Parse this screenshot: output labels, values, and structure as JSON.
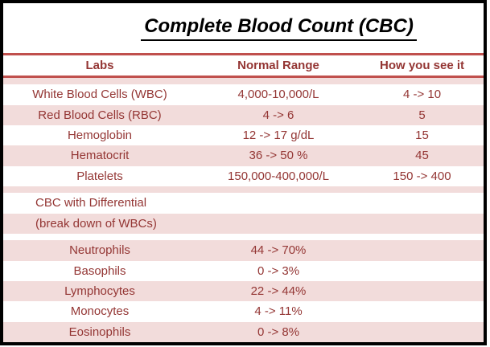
{
  "title": "Complete Blood Count (CBC)",
  "colors": {
    "accent_border": "#C0504D",
    "band_pink": "#F2DCDB",
    "text_maroon": "#943634",
    "frame_black": "#000000"
  },
  "table": {
    "headers": {
      "labs": "Labs",
      "normal_range": "Normal Range",
      "how_you_see_it": "How you see it"
    },
    "rows": [
      {
        "labs": "",
        "normal": "",
        "seen": ""
      },
      {
        "labs": "White Blood Cells (WBC)",
        "normal": "4,000-10,000/L",
        "seen": "4 -> 10"
      },
      {
        "labs": "Red Blood Cells (RBC)",
        "normal": "4 -> 6",
        "seen": "5"
      },
      {
        "labs": "Hemoglobin",
        "normal": "12 -> 17 g/dL",
        "seen": "15"
      },
      {
        "labs": "Hematocrit",
        "normal": "36 -> 50 %",
        "seen": "45"
      },
      {
        "labs": "Platelets",
        "normal": "150,000-400,000/L",
        "seen": "150 -> 400"
      },
      {
        "labs": "",
        "normal": "",
        "seen": ""
      },
      {
        "labs": "CBC with Differential",
        "normal": "",
        "seen": ""
      },
      {
        "labs": "(break down of WBCs)",
        "normal": "",
        "seen": ""
      },
      {
        "labs": "",
        "normal": "",
        "seen": ""
      },
      {
        "labs": "Neutrophils",
        "normal": "44 -> 70%",
        "seen": ""
      },
      {
        "labs": "Basophils",
        "normal": "0 -> 3%",
        "seen": ""
      },
      {
        "labs": "Lymphocytes",
        "normal": "22 -> 44%",
        "seen": ""
      },
      {
        "labs": "Monocytes",
        "normal": "4 -> 11%",
        "seen": ""
      },
      {
        "labs": "Eosinophils",
        "normal": "0 -> 8%",
        "seen": ""
      }
    ]
  }
}
